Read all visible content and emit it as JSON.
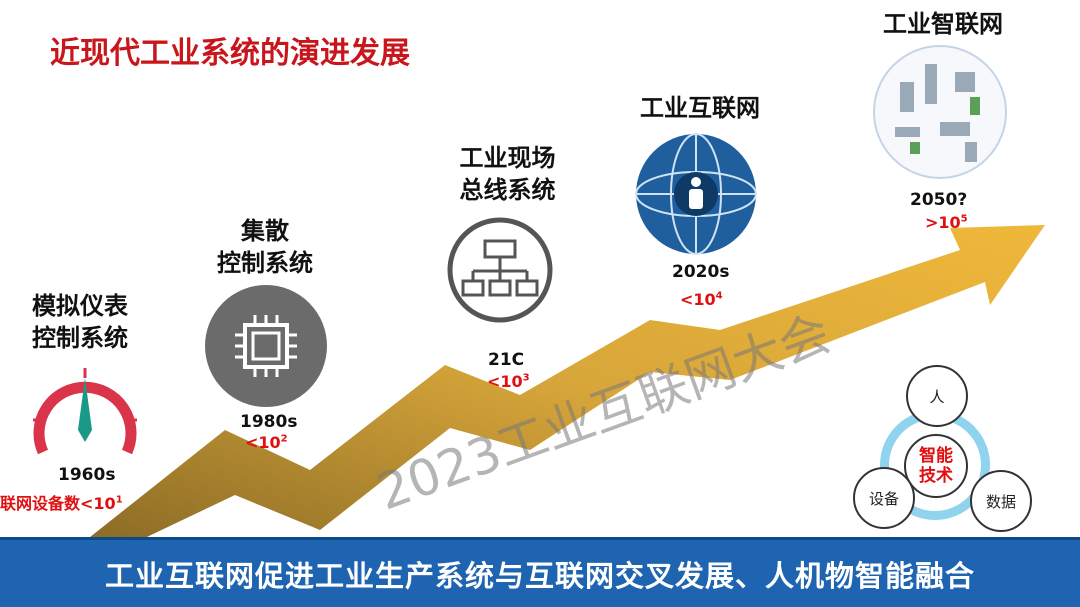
{
  "title": "近现代工业系统的演进发展",
  "stages": [
    {
      "label1": "模拟仪表",
      "label2": "控制系统",
      "year": "1960s",
      "count_prefix": "联网设备数<10",
      "exp": "1",
      "icon": "gauge-icon"
    },
    {
      "label1": "集散",
      "label2": "控制系统",
      "year": "1980s",
      "count_prefix": "<10",
      "exp": "2",
      "icon": "chip-icon"
    },
    {
      "label1": "工业现场",
      "label2": "总线系统",
      "year": "21C",
      "count_prefix": "<10",
      "exp": "3",
      "icon": "network-tree-icon"
    },
    {
      "label1": "工业互联网",
      "label2": "",
      "year": "2020s",
      "count_prefix": "<10",
      "exp": "4",
      "icon": "globe-person-icon"
    },
    {
      "label1": "工业智联网",
      "label2": "",
      "year": "2050?",
      "count_prefix": ">10",
      "exp": "5",
      "icon": "smart-factory-icon"
    }
  ],
  "diagram": {
    "center1": "智能",
    "center2": "技术",
    "top": "人",
    "left": "设备",
    "right": "数据"
  },
  "watermark": "2023工业互联网大会",
  "banner": "工业互联网促进工业生产系统与互联网交叉发展、人机物智能融合",
  "colors": {
    "title": "#c8161d",
    "banner": "#1f64b0",
    "arrow": "#c9962e",
    "gauge": "#d9344a",
    "needle": "#1a9a86"
  }
}
